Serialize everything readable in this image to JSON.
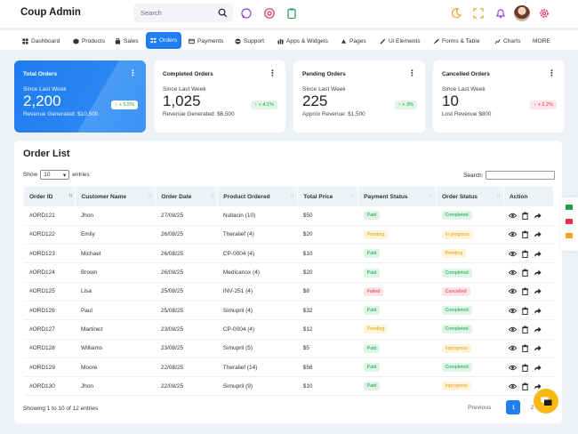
{
  "brand": "Coup Admin",
  "search": {
    "placeholder": "Search"
  },
  "nav": [
    {
      "label": "Dashboard",
      "icon": "dashboard-icon"
    },
    {
      "label": "Products",
      "icon": "box-icon"
    },
    {
      "label": "Sales",
      "icon": "bag-icon"
    },
    {
      "label": "Orders",
      "icon": "orders-icon"
    },
    {
      "label": "Payments",
      "icon": "card-icon"
    },
    {
      "label": "Support",
      "icon": "support-icon"
    },
    {
      "label": "Apps & Widgets",
      "icon": "apps-icon"
    },
    {
      "label": "Pages",
      "icon": "pages-icon"
    },
    {
      "label": "Ui Elements",
      "icon": "ui-icon"
    },
    {
      "label": "Forms & Table",
      "icon": "forms-icon"
    },
    {
      "label": "Charts",
      "icon": "charts-icon"
    },
    {
      "label": "MORE",
      "icon": ""
    }
  ],
  "cards": [
    {
      "title": "Total Orders",
      "since": "Since Last Week",
      "value": "2,200",
      "sub": "Revenue Generated: $10,500",
      "badge": "↑ + 5.5%"
    },
    {
      "title": "Completed Orders",
      "since": "Since Last Week",
      "value": "1,025",
      "sub": "Revenue Generated: $6,500",
      "badge": "↑ + 4.1%"
    },
    {
      "title": "Pending Orders",
      "since": "Since Last Week",
      "value": "225",
      "sub": "Approx Revenue: $1,500",
      "badge": "↑ + 3%"
    },
    {
      "title": "Cancelled Orders",
      "since": "Since Last Week",
      "value": "10",
      "sub": "Lost Revenue $800",
      "badge": "↓ + 2.2%"
    }
  ],
  "orders": {
    "title": "Order List",
    "show_label": "Show",
    "entries_value": "10",
    "entries_label": "entries",
    "search_label": "Search:",
    "columns": [
      "Order ID",
      "Customer Name",
      "Order Date",
      "Product Ordered",
      "Total Price",
      "Payment Status",
      "Order Status",
      "Action"
    ],
    "rows": [
      {
        "id": "#ORD121",
        "customer": "Jhon",
        "date": "27/08/25",
        "product": "Nullacin (10)",
        "price": "$50",
        "payment": "Paid",
        "status": "Completed"
      },
      {
        "id": "#ORD122",
        "customer": "Emily",
        "date": "26/08/25",
        "product": "Theralief (4)",
        "price": "$20",
        "payment": "Pending",
        "status": "In progress"
      },
      {
        "id": "#ORD123",
        "customer": "Michael",
        "date": "26/08/25",
        "product": "CP-0004 (4)",
        "price": "$10",
        "payment": "Paid",
        "status": "Pending"
      },
      {
        "id": "#ORD124",
        "customer": "Brown",
        "date": "26/08/25",
        "product": "Medicanox (4)",
        "price": "$20",
        "payment": "Paid",
        "status": "Completed"
      },
      {
        "id": "#ORD125",
        "customer": "Lisa",
        "date": "25/08/25",
        "product": "INV-251 (4)",
        "price": "$8",
        "payment": "Failed",
        "status": "Cancelled"
      },
      {
        "id": "#ORD126",
        "customer": "Paul",
        "date": "25/08/25",
        "product": "Simupril (4)",
        "price": "$32",
        "payment": "Paid",
        "status": "Completed"
      },
      {
        "id": "#ORD127",
        "customer": "Martinez",
        "date": "23/08/25",
        "product": "CP-0004 (4)",
        "price": "$12",
        "payment": "Pending",
        "status": "Completed"
      },
      {
        "id": "#ORD128",
        "customer": "Williams",
        "date": "23/08/25",
        "product": "Simupril (5)",
        "price": "$5",
        "payment": "Paid",
        "status": "Inprogress"
      },
      {
        "id": "#ORD129",
        "customer": "Moore",
        "date": "22/08/25",
        "product": "Theralief (14)",
        "price": "$56",
        "payment": "Paid",
        "status": "Completed"
      },
      {
        "id": "#ORD130",
        "customer": "Jhon",
        "date": "22/08/25",
        "product": "Simupril (9)",
        "price": "$10",
        "payment": "Paid",
        "status": "Inprogress"
      }
    ],
    "footer": "Showing 1 to 10 of 12 entries",
    "prev": "Previous",
    "pages": [
      "1",
      "2"
    ]
  },
  "colors": {
    "accent": "#1f7ef0",
    "fab": "#f6b813"
  }
}
